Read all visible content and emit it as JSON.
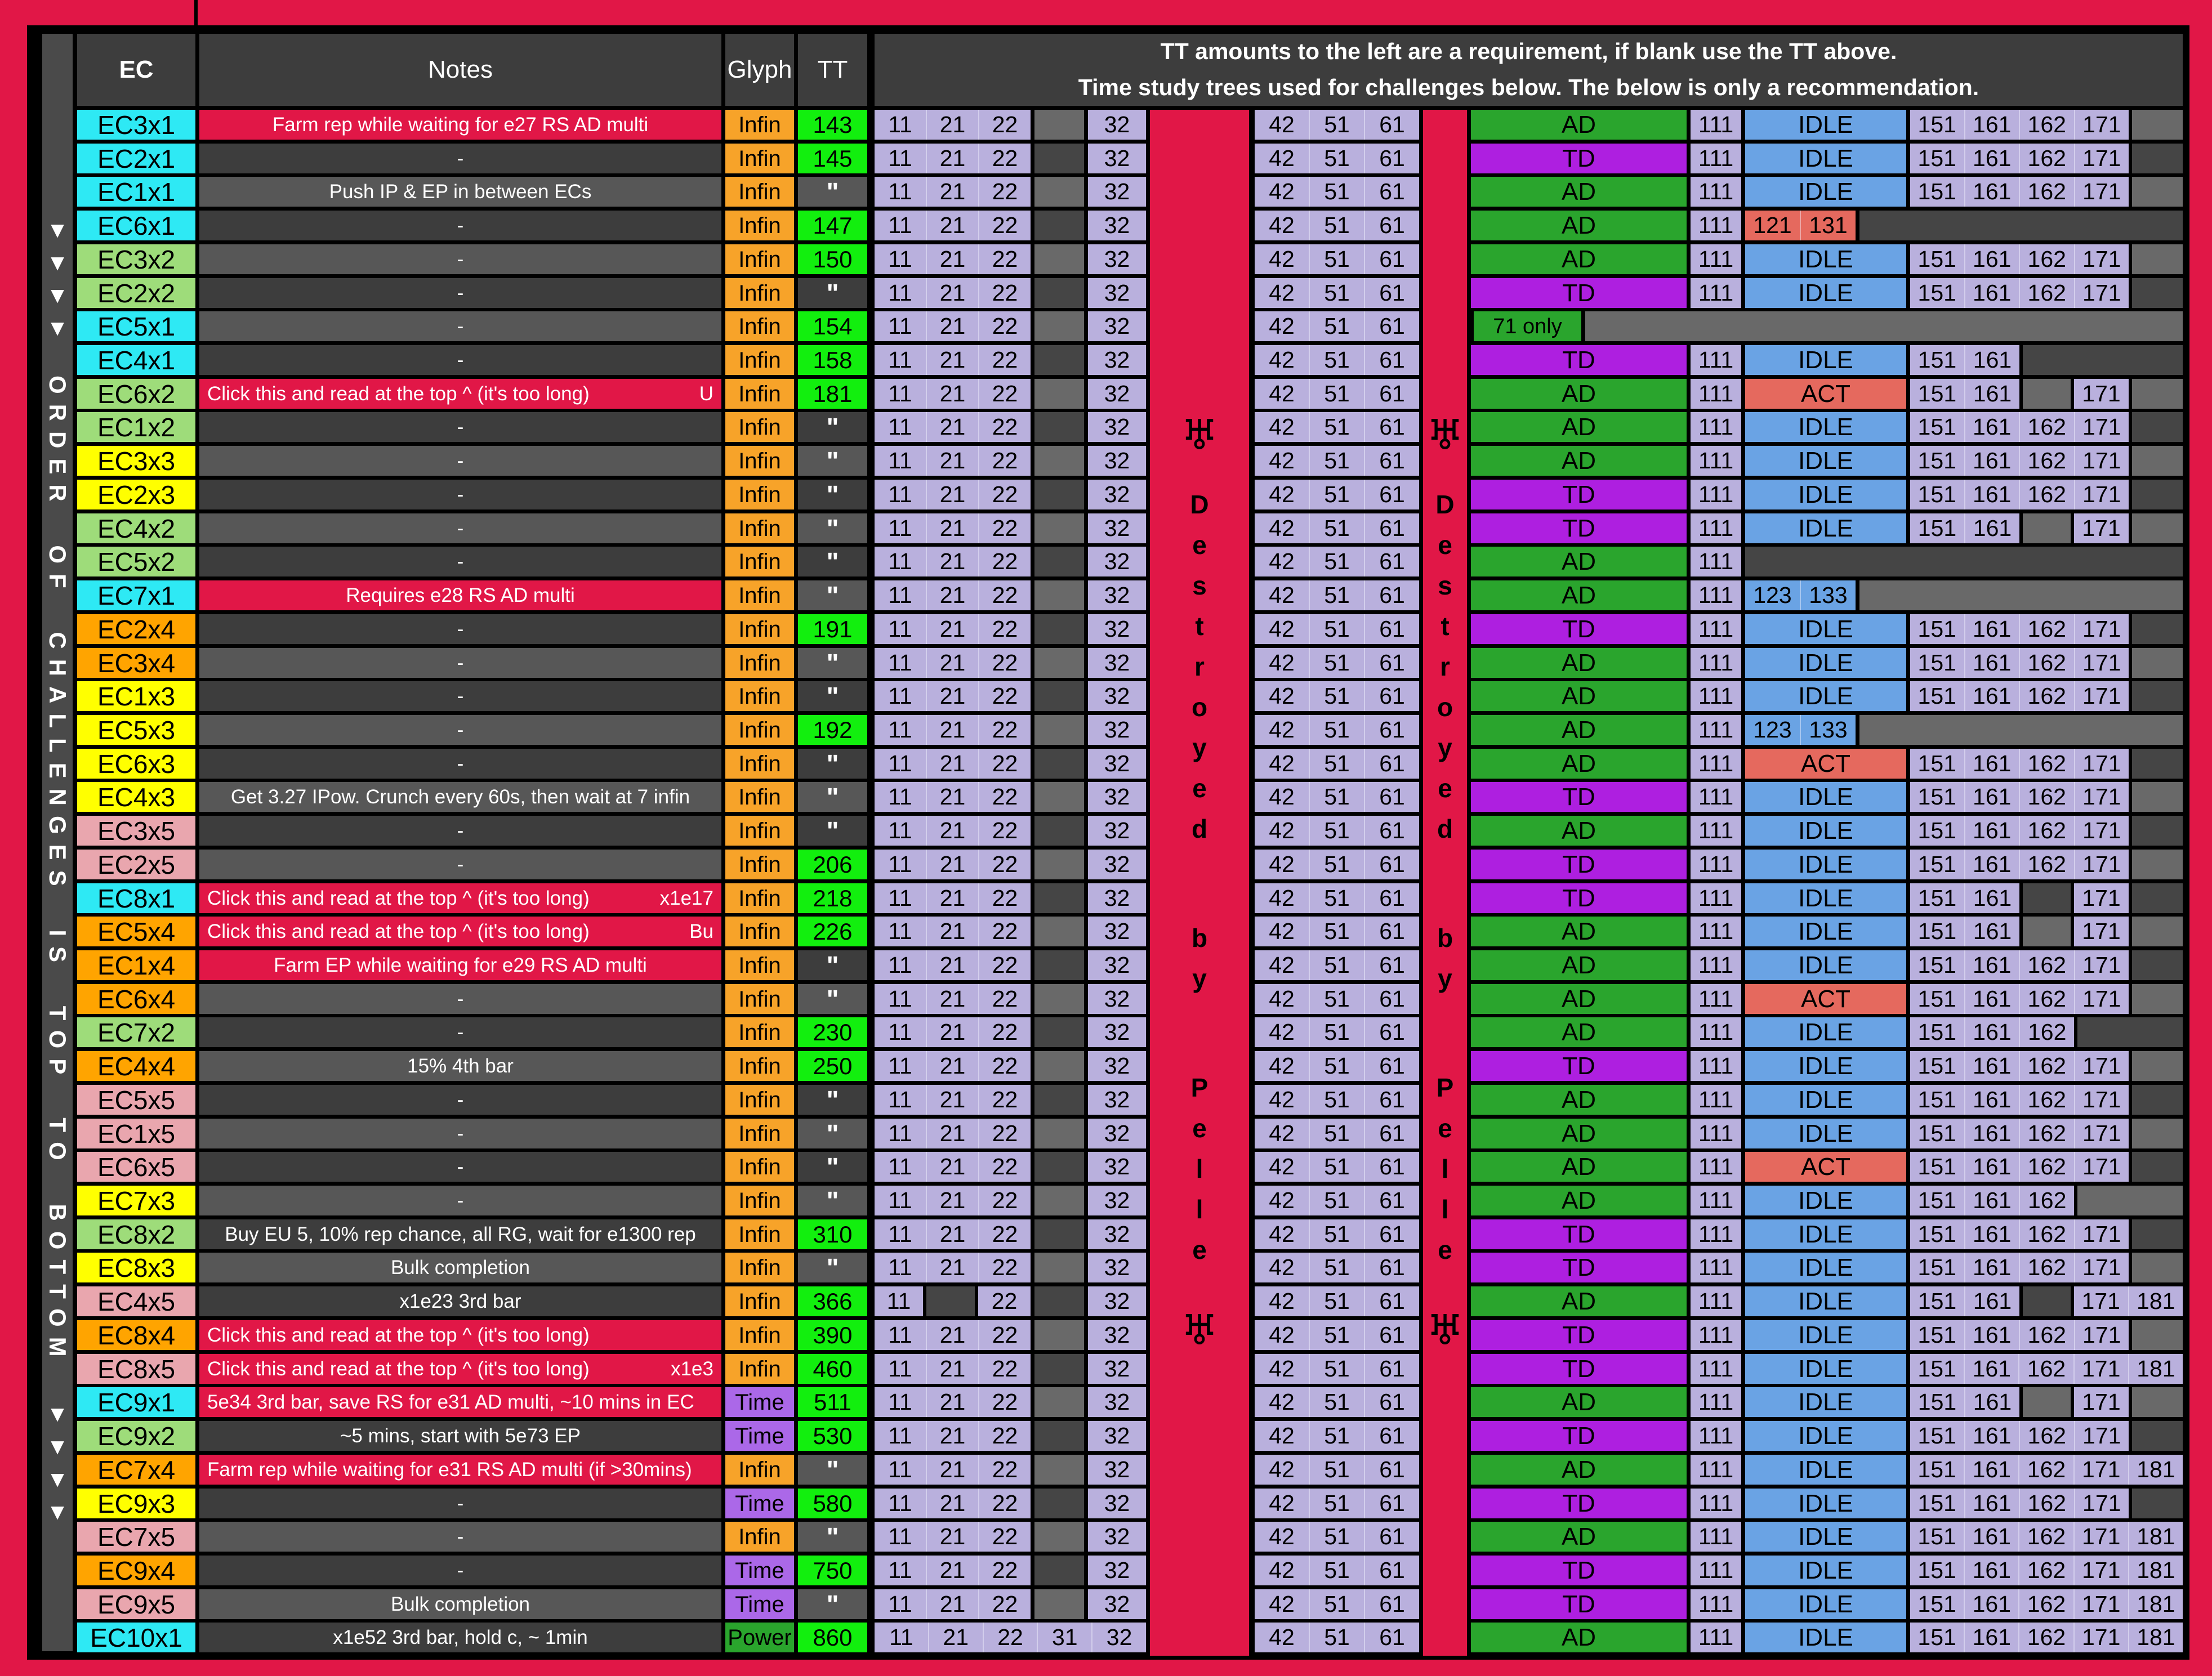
{
  "palette": {
    "red": "#e11747",
    "dark": "#3d3d3d",
    "light": "#575757",
    "filldark": "#454545",
    "filllight": "#696969",
    "rail": "#4a4a4a",
    "lav": "#b9b0dd",
    "blue": "#6aa3e4",
    "salmon": "#e5695e",
    "green": "#2aa52d",
    "purple": "#ae1fe0",
    "ttgreen": "#12ef0e",
    "infin": "#f7a329",
    "time": "#ab68e8",
    "t1": "#2ee9f4",
    "t2": "#9edc7a",
    "t3": "#ffff00",
    "t4": "#ffa400",
    "t5": "#e9a6ae"
  },
  "header": {
    "ec": "EC",
    "notes": "Notes",
    "glyph": "Glyph",
    "tt": "TT",
    "banner_line1": "TT amounts to the left are a requirement, if blank use the TT above.",
    "banner_line2": "Time study trees used for challenges below. The below is only a recommendation."
  },
  "left_rail": {
    "arrows": "▼▼▼▼",
    "text": "ORDER OF CHALLENGES IS TOP TO BOTTOM"
  },
  "pelle": {
    "symbol": "♅",
    "text": "Destroyed by Pelle"
  },
  "columns": {
    "mid": [
      "11",
      "21",
      "22",
      "31",
      "32"
    ],
    "mid2": [
      "42",
      "51",
      "61"
    ],
    "c111": "111",
    "tail": [
      "151",
      "161",
      "162",
      "171",
      "181"
    ],
    "seventy_one": "71 only"
  },
  "rows": [
    {
      "ec": "EC3x1",
      "t": 1,
      "note": "Farm rep while waiting for e27 RS AD multi",
      "n": "red",
      "g": "Infin",
      "tt": "143",
      "tree": "AD",
      "mode": "IDLE",
      "tail": "11110"
    },
    {
      "ec": "EC2x1",
      "t": 1,
      "note": "-",
      "g": "Infin",
      "tt": "145",
      "tree": "TD",
      "mode": "IDLE",
      "tail": "11110"
    },
    {
      "ec": "EC1x1",
      "t": 1,
      "note": "Push IP & EP in between ECs",
      "g": "Infin",
      "tt": "\"",
      "tree": "AD",
      "mode": "IDLE",
      "tail": "11110"
    },
    {
      "ec": "EC6x1",
      "t": 1,
      "note": "-",
      "g": "Infin",
      "tt": "147",
      "tree": "AD",
      "mode": "121 131",
      "ms": "act",
      "short": true,
      "tail": ""
    },
    {
      "ec": "EC3x2",
      "t": 2,
      "note": "-",
      "g": "Infin",
      "tt": "150",
      "tree": "AD",
      "mode": "IDLE",
      "tail": "11110"
    },
    {
      "ec": "EC2x2",
      "t": 2,
      "note": "-",
      "g": "Infin",
      "tt": "\"",
      "tree": "TD",
      "mode": "IDLE",
      "tail": "11110"
    },
    {
      "ec": "EC5x1",
      "t": 1,
      "note": "-",
      "g": "Infin",
      "tt": "154",
      "s": "71only",
      "tail": ""
    },
    {
      "ec": "EC4x1",
      "t": 1,
      "note": "-",
      "g": "Infin",
      "tt": "158",
      "tree": "TD",
      "mode": "IDLE",
      "tail": "11000"
    },
    {
      "ec": "EC6x2",
      "t": 2,
      "note": "Click this and read at the top ^ (it's too long)",
      "nr": "U",
      "n": "red",
      "na": "left",
      "g": "Infin",
      "tt": "181",
      "tree": "AD",
      "mode": "ACT",
      "tail": "11010"
    },
    {
      "ec": "EC1x2",
      "t": 2,
      "note": "-",
      "g": "Infin",
      "tt": "\"",
      "tree": "AD",
      "mode": "IDLE",
      "tail": "11110"
    },
    {
      "ec": "EC3x3",
      "t": 3,
      "note": "-",
      "g": "Infin",
      "tt": "\"",
      "tree": "AD",
      "mode": "IDLE",
      "tail": "11110"
    },
    {
      "ec": "EC2x3",
      "t": 3,
      "note": "-",
      "g": "Infin",
      "tt": "\"",
      "tree": "TD",
      "mode": "IDLE",
      "tail": "11110"
    },
    {
      "ec": "EC4x2",
      "t": 2,
      "note": "-",
      "g": "Infin",
      "tt": "\"",
      "tree": "TD",
      "mode": "IDLE",
      "tail": "11010"
    },
    {
      "ec": "EC5x2",
      "t": 2,
      "note": "-",
      "g": "Infin",
      "tt": "\"",
      "tree": "AD",
      "mode": "",
      "tail": ""
    },
    {
      "ec": "EC7x1",
      "t": 1,
      "note": "Requires e28 RS AD multi",
      "n": "red",
      "g": "Infin",
      "tt": "\"",
      "tree": "AD",
      "mode": "123 133",
      "ms": "idle",
      "short": true,
      "tail": ""
    },
    {
      "ec": "EC2x4",
      "t": 4,
      "note": "-",
      "g": "Infin",
      "tt": "191",
      "tree": "TD",
      "mode": "IDLE",
      "tail": "11110"
    },
    {
      "ec": "EC3x4",
      "t": 4,
      "note": "-",
      "g": "Infin",
      "tt": "\"",
      "tree": "AD",
      "mode": "IDLE",
      "tail": "11110"
    },
    {
      "ec": "EC1x3",
      "t": 3,
      "note": "-",
      "g": "Infin",
      "tt": "\"",
      "tree": "AD",
      "mode": "IDLE",
      "tail": "11110"
    },
    {
      "ec": "EC5x3",
      "t": 3,
      "note": "-",
      "g": "Infin",
      "tt": "192",
      "tree": "AD",
      "mode": "123 133",
      "ms": "idle",
      "short": true,
      "tail": ""
    },
    {
      "ec": "EC6x3",
      "t": 3,
      "note": "-",
      "g": "Infin",
      "tt": "\"",
      "tree": "AD",
      "mode": "ACT",
      "tail": "11110"
    },
    {
      "ec": "EC4x3",
      "t": 3,
      "note": "Get 3.27 IPow. Crunch every 60s, then wait at 7 infin",
      "g": "Infin",
      "tt": "\"",
      "tree": "TD",
      "mode": "IDLE",
      "tail": "11110"
    },
    {
      "ec": "EC3x5",
      "t": 5,
      "note": "-",
      "g": "Infin",
      "tt": "\"",
      "tree": "AD",
      "mode": "IDLE",
      "tail": "11110"
    },
    {
      "ec": "EC2x5",
      "t": 5,
      "note": "-",
      "g": "Infin",
      "tt": "206",
      "tree": "TD",
      "mode": "IDLE",
      "tail": "11110"
    },
    {
      "ec": "EC8x1",
      "t": 1,
      "note": "Click this and read at the top ^ (it's too long)",
      "nr": "x1e17",
      "n": "red",
      "na": "left",
      "g": "Infin",
      "tt": "218",
      "tree": "TD",
      "mode": "IDLE",
      "tail": "11010"
    },
    {
      "ec": "EC5x4",
      "t": 4,
      "note": "Click this and read at the top ^ (it's too long)",
      "nr": "Bu",
      "n": "red",
      "na": "left",
      "g": "Infin",
      "tt": "226",
      "tree": "AD",
      "mode": "IDLE",
      "tail": "11010"
    },
    {
      "ec": "EC1x4",
      "t": 4,
      "note": "Farm EP while waiting for e29 RS AD multi",
      "n": "red",
      "g": "Infin",
      "tt": "\"",
      "tree": "AD",
      "mode": "IDLE",
      "tail": "11110"
    },
    {
      "ec": "EC6x4",
      "t": 4,
      "note": "-",
      "g": "Infin",
      "tt": "\"",
      "tree": "AD",
      "mode": "ACT",
      "tail": "11110"
    },
    {
      "ec": "EC7x2",
      "t": 2,
      "note": "-",
      "g": "Infin",
      "tt": "230",
      "tree": "AD",
      "mode": "IDLE",
      "tail": "11100"
    },
    {
      "ec": "EC4x4",
      "t": 4,
      "note": "15% 4th bar",
      "g": "Infin",
      "tt": "250",
      "tree": "TD",
      "mode": "IDLE",
      "tail": "11110"
    },
    {
      "ec": "EC5x5",
      "t": 5,
      "note": "-",
      "g": "Infin",
      "tt": "\"",
      "tree": "AD",
      "mode": "IDLE",
      "tail": "11110"
    },
    {
      "ec": "EC1x5",
      "t": 5,
      "note": "-",
      "g": "Infin",
      "tt": "\"",
      "tree": "AD",
      "mode": "IDLE",
      "tail": "11110"
    },
    {
      "ec": "EC6x5",
      "t": 5,
      "note": "-",
      "g": "Infin",
      "tt": "\"",
      "tree": "AD",
      "mode": "ACT",
      "tail": "11110"
    },
    {
      "ec": "EC7x3",
      "t": 3,
      "note": "-",
      "g": "Infin",
      "tt": "\"",
      "tree": "AD",
      "mode": "IDLE",
      "tail": "11100"
    },
    {
      "ec": "EC8x2",
      "t": 2,
      "note": "Buy EU 5, 10% rep chance, all RG, wait for e1300 rep",
      "g": "Infin",
      "tt": "310",
      "tree": "TD",
      "mode": "IDLE",
      "tail": "11110"
    },
    {
      "ec": "EC8x3",
      "t": 3,
      "note": "Bulk completion",
      "g": "Infin",
      "tt": "\"",
      "tree": "TD",
      "mode": "IDLE",
      "tail": "11110"
    },
    {
      "ec": "EC4x5",
      "t": 5,
      "note": "x1e23 3rd bar",
      "g": "Infin",
      "tt": "366",
      "mid": "no21",
      "tree": "AD",
      "mode": "IDLE",
      "tail": "11011"
    },
    {
      "ec": "EC8x4",
      "t": 4,
      "note": "Click this and read at the top ^ (it's too long)",
      "n": "red",
      "na": "left",
      "g": "Infin",
      "tt": "390",
      "tree": "TD",
      "mode": "IDLE",
      "tail": "11110"
    },
    {
      "ec": "EC8x5",
      "t": 5,
      "note": "Click this and read at the top ^ (it's too long)",
      "nr": "x1e3",
      "n": "red",
      "na": "left",
      "g": "Infin",
      "tt": "460",
      "tree": "TD",
      "mode": "IDLE",
      "tail": "11111"
    },
    {
      "ec": "EC9x1",
      "t": 1,
      "note": "5e34 3rd bar, save RS for e31 AD multi, ~10 mins in EC",
      "n": "red",
      "na": "left",
      "g": "Time",
      "tt": "511",
      "tree": "AD",
      "mode": "IDLE",
      "tail": "11010"
    },
    {
      "ec": "EC9x2",
      "t": 2,
      "note": "~5 mins, start with 5e73 EP",
      "g": "Time",
      "tt": "530",
      "tree": "TD",
      "mode": "IDLE",
      "tail": "11110"
    },
    {
      "ec": "EC7x4",
      "t": 4,
      "note": "Farm rep while waiting for e31 RS AD multi (if >30mins)",
      "n": "red",
      "na": "left",
      "g": "Infin",
      "tt": "\"",
      "tree": "AD",
      "mode": "IDLE",
      "tail": "11111"
    },
    {
      "ec": "EC9x3",
      "t": 3,
      "note": "-",
      "g": "Time",
      "tt": "580",
      "tree": "TD",
      "mode": "IDLE",
      "tail": "11110"
    },
    {
      "ec": "EC7x5",
      "t": 5,
      "note": "-",
      "g": "Infin",
      "tt": "\"",
      "tree": "AD",
      "mode": "IDLE",
      "tail": "11111"
    },
    {
      "ec": "EC9x4",
      "t": 4,
      "note": "-",
      "g": "Time",
      "tt": "750",
      "tree": "TD",
      "mode": "IDLE",
      "tail": "11111"
    },
    {
      "ec": "EC9x5",
      "t": 5,
      "note": "Bulk completion",
      "g": "Time",
      "tt": "\"",
      "tree": "TD",
      "mode": "IDLE",
      "tail": "11111"
    },
    {
      "ec": "EC10x1",
      "t": 1,
      "note": "x1e52 3rd bar, hold c, ~ 1min",
      "g": "Power",
      "tt": "860",
      "mid": "all5",
      "tree": "AD",
      "mode": "IDLE",
      "tail": "11111"
    }
  ]
}
